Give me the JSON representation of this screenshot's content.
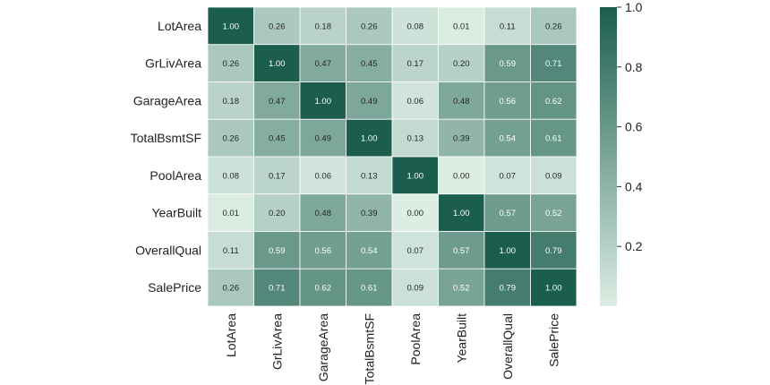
{
  "chart_data": {
    "type": "heatmap",
    "title": "",
    "row_labels": [
      "LotArea",
      "GrLivArea",
      "GarageArea",
      "TotalBsmtSF",
      "PoolArea",
      "YearBuilt",
      "OverallQual",
      "SalePrice"
    ],
    "col_labels": [
      "LotArea",
      "GrLivArea",
      "GarageArea",
      "TotalBsmtSF",
      "PoolArea",
      "YearBuilt",
      "OverallQual",
      "SalePrice"
    ],
    "values": [
      [
        1.0,
        0.26,
        0.18,
        0.26,
        0.08,
        0.01,
        0.11,
        0.26
      ],
      [
        0.26,
        1.0,
        0.47,
        0.45,
        0.17,
        0.2,
        0.59,
        0.71
      ],
      [
        0.18,
        0.47,
        1.0,
        0.49,
        0.06,
        0.48,
        0.56,
        0.62
      ],
      [
        0.26,
        0.45,
        0.49,
        1.0,
        0.13,
        0.39,
        0.54,
        0.61
      ],
      [
        0.08,
        0.17,
        0.06,
        0.13,
        1.0,
        0.0,
        0.07,
        0.09
      ],
      [
        0.01,
        0.2,
        0.48,
        0.39,
        0.0,
        1.0,
        0.57,
        0.52
      ],
      [
        0.11,
        0.59,
        0.56,
        0.54,
        0.07,
        0.57,
        1.0,
        0.79
      ],
      [
        0.26,
        0.71,
        0.62,
        0.61,
        0.09,
        0.52,
        0.79,
        1.0
      ]
    ],
    "value_format": "0.00",
    "colorbar": {
      "range": [
        0.0,
        1.0
      ],
      "ticks": [
        0.2,
        0.4,
        0.6,
        0.8,
        1.0
      ],
      "tick_labels": [
        "0.2",
        "0.4",
        "0.6",
        "0.8",
        "1.0"
      ],
      "colors": {
        "low": "#dcede4",
        "high": "#1b5e4d"
      }
    },
    "annotation_colors": {
      "light_text": "#ffffff",
      "dark_text": "#262626"
    },
    "grid_line_color": "#ffffff"
  }
}
